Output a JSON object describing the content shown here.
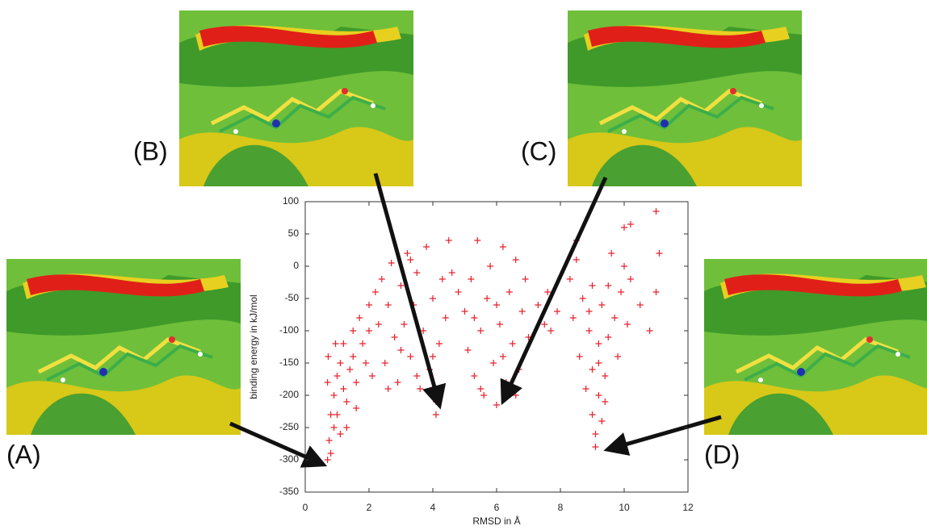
{
  "chart_data": {
    "type": "scatter",
    "xlabel": "RMSD in Å",
    "ylabel": "binding energy in kJ/mol",
    "color": "#e8202a",
    "marker": "+",
    "xlim": [
      0,
      12
    ],
    "xticks": [
      0,
      2,
      4,
      6,
      8,
      10,
      12
    ],
    "ylim": [
      -350,
      100
    ],
    "yticks": [
      -350,
      -300,
      -250,
      -200,
      -150,
      -100,
      -50,
      0,
      50,
      100
    ],
    "annotations": [
      "(A)",
      "(B)",
      "(C)",
      "(D)"
    ],
    "x": [
      0.7,
      0.8,
      0.75,
      0.9,
      0.8,
      0.7,
      0.72,
      0.9,
      1.0,
      1.0,
      1.1,
      1.2,
      1.2,
      1.3,
      1.4,
      1.5,
      1.5,
      1.6,
      1.7,
      1.8,
      1.9,
      2.0,
      2.0,
      2.1,
      2.2,
      1.3,
      1.1,
      0.95,
      1.6,
      2.3,
      2.4,
      2.5,
      2.6,
      2.7,
      2.8,
      2.9,
      3.0,
      3.1,
      3.2,
      3.3,
      3.4,
      3.5,
      3.6,
      3.7,
      3.8,
      3.9,
      4.0,
      4.1,
      4.2,
      4.3,
      4.4,
      4.1,
      4.5,
      3.0,
      3.5,
      2.6,
      4.6,
      4.8,
      3.3,
      4.0,
      5.0,
      5.1,
      5.2,
      5.3,
      5.4,
      5.5,
      5.6,
      5.7,
      5.8,
      5.9,
      6.0,
      6.1,
      6.2,
      6.3,
      6.4,
      6.5,
      6.6,
      6.7,
      6.8,
      6.9,
      7.0,
      5.5,
      6.0,
      6.2,
      5.3,
      6.6,
      7.3,
      7.5,
      7.7,
      7.9,
      7.6,
      8.3,
      8.4,
      8.5,
      8.6,
      8.7,
      8.8,
      8.9,
      9.0,
      9.0,
      9.1,
      9.1,
      9.2,
      9.2,
      9.3,
      9.3,
      9.4,
      9.5,
      9.5,
      9.6,
      9.7,
      9.8,
      9.9,
      10.0,
      10.1,
      10.2,
      8.5,
      9.0,
      9.4,
      8.9,
      9.2,
      10.0,
      10.2,
      10.5,
      10.8,
      11.0,
      11.1,
      11.0
    ],
    "y": [
      -300,
      -290,
      -270,
      -250,
      -230,
      -180,
      -140,
      -200,
      -170,
      -230,
      -150,
      -190,
      -120,
      -210,
      -160,
      -100,
      -140,
      -180,
      -80,
      -120,
      -150,
      -60,
      -100,
      -170,
      -40,
      -250,
      -260,
      -120,
      -220,
      -90,
      -20,
      -150,
      -60,
      5,
      -110,
      -180,
      -30,
      -90,
      20,
      -140,
      -60,
      -10,
      -190,
      -100,
      30,
      -160,
      -50,
      -210,
      -120,
      -20,
      -80,
      -230,
      40,
      -130,
      -170,
      -190,
      -10,
      -40,
      10,
      -140,
      -70,
      -130,
      -20,
      -170,
      40,
      -100,
      -200,
      -50,
      0,
      -150,
      -215,
      -90,
      30,
      -180,
      -40,
      -120,
      10,
      -160,
      -70,
      -20,
      -110,
      -190,
      -60,
      -140,
      -80,
      -200,
      -60,
      -90,
      -100,
      -70,
      -40,
      -20,
      -80,
      10,
      -140,
      -50,
      -190,
      -100,
      -230,
      -160,
      -260,
      -280,
      -200,
      -120,
      -60,
      -240,
      -170,
      -30,
      -110,
      20,
      -80,
      -140,
      -40,
      0,
      -90,
      -20,
      40,
      -30,
      -210,
      -70,
      -150,
      60,
      65,
      -60,
      -100,
      -40,
      20,
      85
    ]
  }
}
